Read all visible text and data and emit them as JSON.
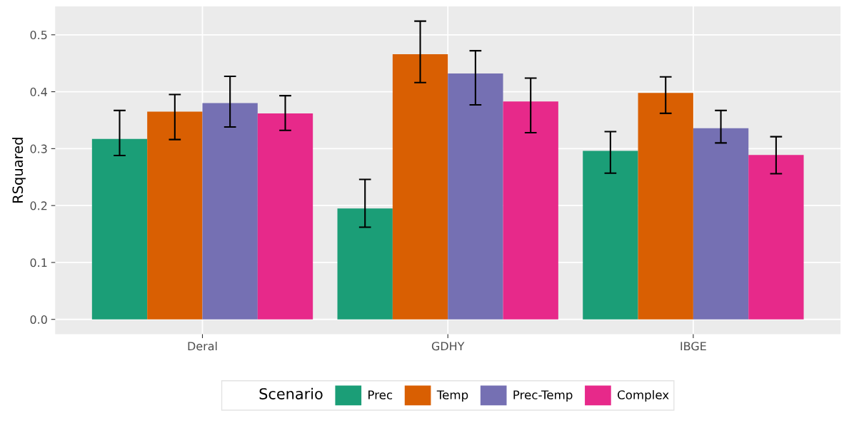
{
  "chart_data": {
    "type": "bar",
    "ylabel": "RSquared",
    "legend_title": "Scenario",
    "categories": [
      "Deral",
      "GDHY",
      "IBGE"
    ],
    "series": [
      {
        "name": "Prec",
        "color": "#1b9e77",
        "values": [
          0.317,
          0.195,
          0.296
        ],
        "errors": [
          [
            0.288,
            0.367
          ],
          [
            0.162,
            0.246
          ],
          [
            0.257,
            0.33
          ]
        ]
      },
      {
        "name": "Temp",
        "color": "#d95f02",
        "values": [
          0.365,
          0.466,
          0.398
        ],
        "errors": [
          [
            0.316,
            0.395
          ],
          [
            0.416,
            0.524
          ],
          [
            0.362,
            0.426
          ]
        ]
      },
      {
        "name": "Prec-Temp",
        "color": "#7570b3",
        "values": [
          0.38,
          0.432,
          0.336
        ],
        "errors": [
          [
            0.338,
            0.427
          ],
          [
            0.377,
            0.472
          ],
          [
            0.31,
            0.367
          ]
        ]
      },
      {
        "name": "Complex",
        "color": "#e7298a",
        "values": [
          0.362,
          0.383,
          0.289
        ],
        "errors": [
          [
            0.332,
            0.393
          ],
          [
            0.328,
            0.424
          ],
          [
            0.256,
            0.321
          ]
        ]
      }
    ],
    "ylim": [
      -0.026,
      0.55
    ],
    "yticks": [
      {
        "value": 0,
        "label": "0.0"
      },
      0.1,
      0.2,
      0.3,
      0.4,
      0.5
    ],
    "grid": true,
    "legend": "bottom"
  }
}
